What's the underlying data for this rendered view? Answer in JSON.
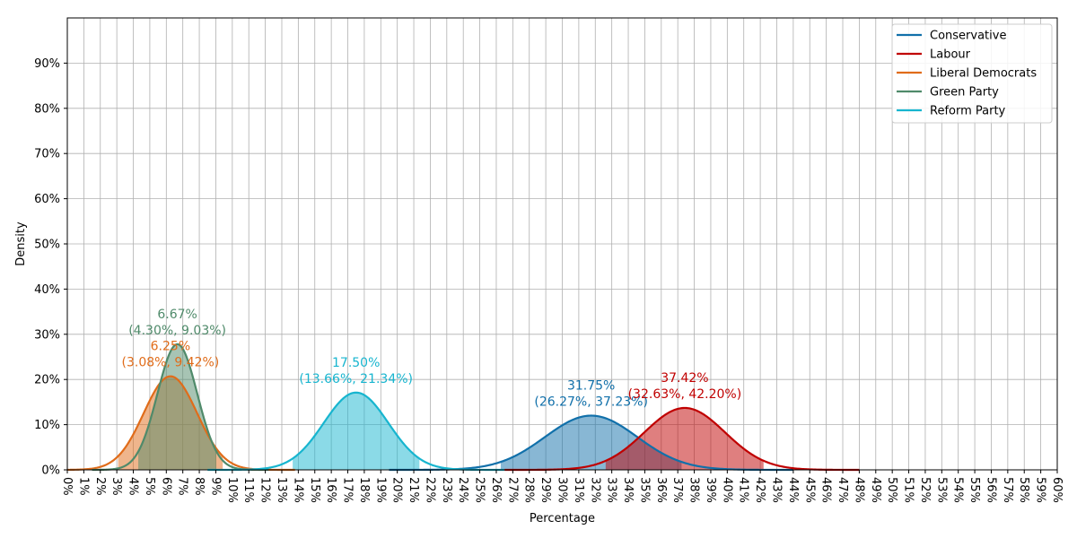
{
  "chart_data": {
    "type": "line",
    "title": "",
    "xlabel": "Percentage",
    "ylabel": "Density",
    "xlim": [
      0,
      60
    ],
    "ylim": [
      0,
      100
    ],
    "x_tick_labels": [
      "0%",
      "1%",
      "2%",
      "3%",
      "4%",
      "5%",
      "6%",
      "7%",
      "8%",
      "9%",
      "10%",
      "11%",
      "12%",
      "13%",
      "14%",
      "15%",
      "16%",
      "17%",
      "18%",
      "19%",
      "20%",
      "21%",
      "22%",
      "23%",
      "24%",
      "25%",
      "26%",
      "27%",
      "28%",
      "29%",
      "30%",
      "31%",
      "32%",
      "33%",
      "34%",
      "35%",
      "36%",
      "37%",
      "38%",
      "39%",
      "40%",
      "41%",
      "42%",
      "43%",
      "44%",
      "45%",
      "46%",
      "47%",
      "48%",
      "49%",
      "50%",
      "51%",
      "52%",
      "53%",
      "54%",
      "55%",
      "56%",
      "57%",
      "58%",
      "59%",
      "60%"
    ],
    "y_ticks": [
      0,
      10,
      20,
      30,
      40,
      50,
      60,
      70,
      80,
      90
    ],
    "y_tick_labels": [
      "0%",
      "10%",
      "20%",
      "30%",
      "40%",
      "50%",
      "60%",
      "70%",
      "80%",
      "90%"
    ],
    "grid": true,
    "legend_position": "top-right",
    "series": [
      {
        "name": "Conservative",
        "color": "#1170aa",
        "mean": 31.75,
        "peak_density": 12.0,
        "ci": [
          26.27,
          37.23
        ],
        "range": [
          19.5,
          44.0
        ],
        "label_mean": "31.75%",
        "label_ci": "(26.27%, 37.23%)"
      },
      {
        "name": "Labour",
        "color": "#c00000",
        "mean": 37.42,
        "peak_density": 13.7,
        "ci": [
          32.63,
          42.2
        ],
        "range": [
          26.5,
          48.0
        ],
        "label_mean": "37.42%",
        "label_ci": "(32.63%, 42.20%)"
      },
      {
        "name": "Liberal Democrats",
        "color": "#e06c1a",
        "mean": 6.25,
        "peak_density": 20.7,
        "ci": [
          3.08,
          9.42
        ],
        "range": [
          0.0,
          13.8
        ],
        "label_mean": "6.25%",
        "label_ci": "(3.08%, 9.42%)"
      },
      {
        "name": "Green Party",
        "color": "#4f8a6a",
        "mean": 6.67,
        "peak_density": 27.8,
        "ci": [
          4.3,
          9.03
        ],
        "range": [
          1.5,
          12.2
        ],
        "label_mean": "6.67%",
        "label_ci": "(4.30%, 9.03%)"
      },
      {
        "name": "Reform Party",
        "color": "#17b5cf",
        "mean": 17.5,
        "peak_density": 17.1,
        "ci": [
          13.66,
          21.34
        ],
        "range": [
          8.5,
          26.5
        ],
        "label_mean": "17.50%",
        "label_ci": "(13.66%, 21.34%)"
      }
    ]
  }
}
